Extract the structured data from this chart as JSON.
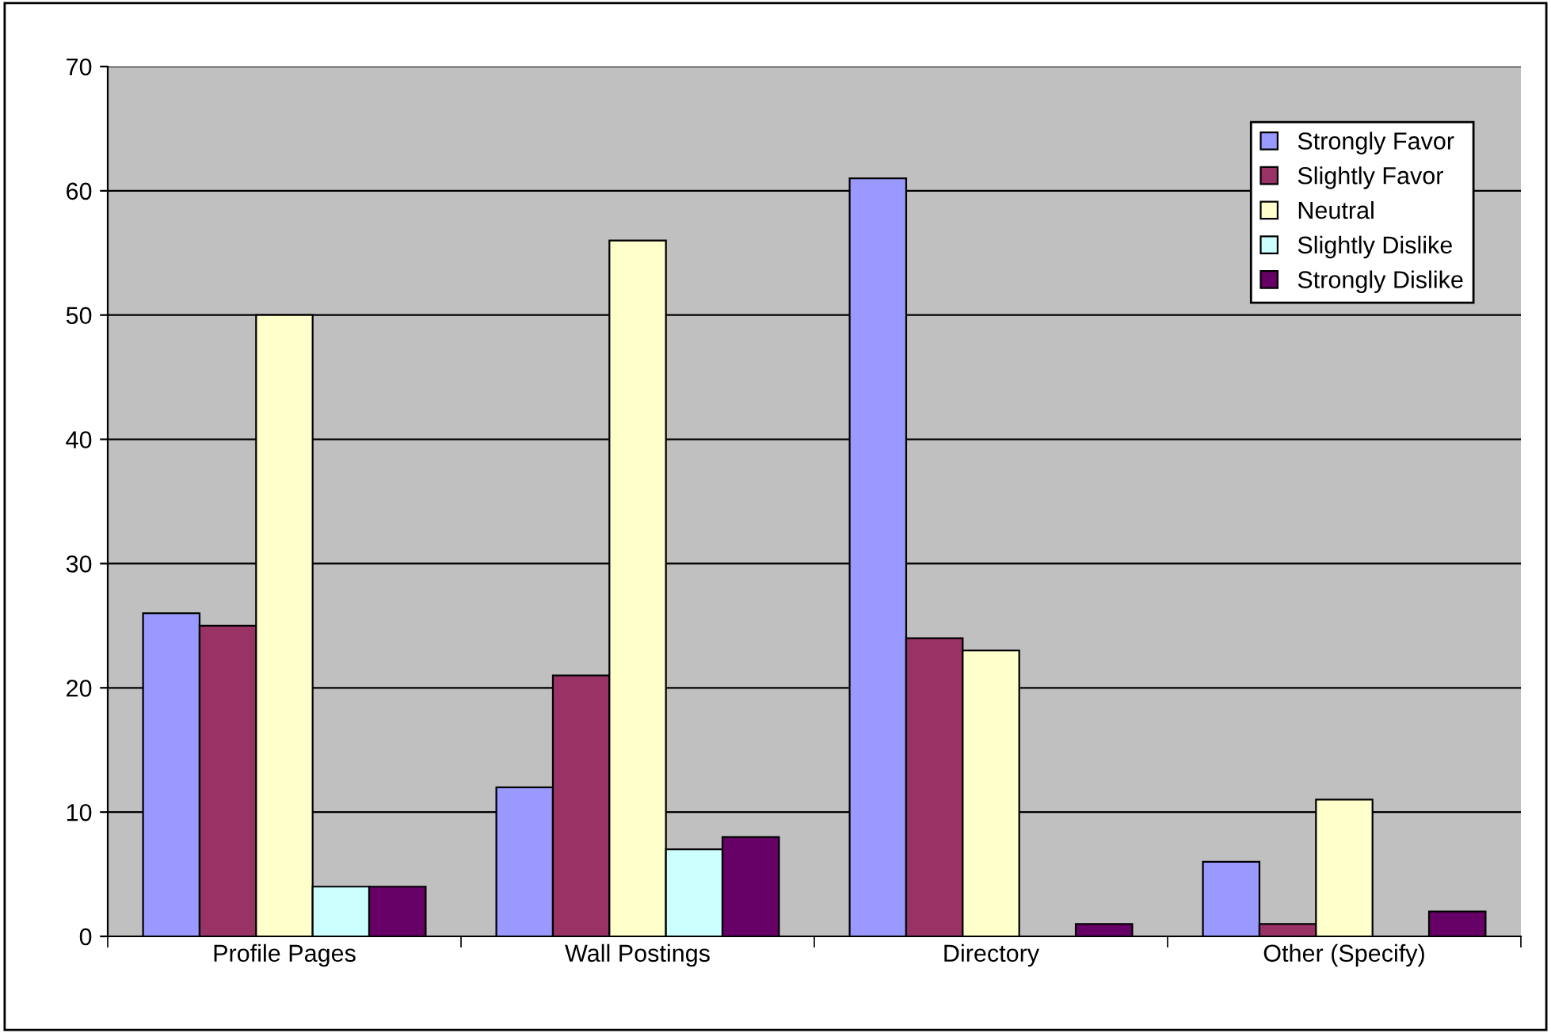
{
  "chart_data": {
    "type": "bar",
    "categories": [
      "Profile Pages",
      "Wall Postings",
      "Directory",
      "Other (Specify)"
    ],
    "series": [
      {
        "name": "Strongly Favor",
        "color": "#9999ff",
        "values": [
          26,
          12,
          61,
          6
        ]
      },
      {
        "name": "Slightly Favor",
        "color": "#993366",
        "values": [
          25,
          21,
          24,
          1
        ]
      },
      {
        "name": "Neutral",
        "color": "#ffffcc",
        "values": [
          50,
          56,
          23,
          11
        ]
      },
      {
        "name": "Slightly Dislike",
        "color": "#ccffff",
        "values": [
          4,
          7,
          null,
          null
        ]
      },
      {
        "name": "Strongly Dislike",
        "color": "#660066",
        "values": [
          4,
          8,
          1,
          2
        ]
      }
    ],
    "ylim": [
      0,
      70
    ],
    "yticks": [
      0,
      10,
      20,
      30,
      40,
      50,
      60,
      70
    ],
    "grid": "y",
    "legend": "top right"
  }
}
